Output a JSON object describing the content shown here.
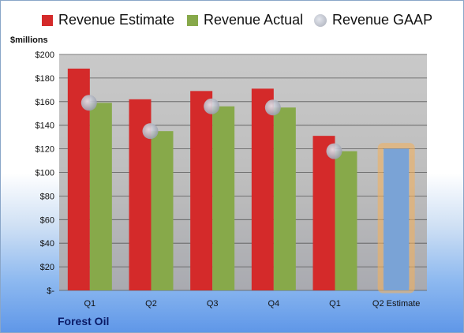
{
  "legend": {
    "estimate": "Revenue Estimate",
    "actual": "Revenue Actual",
    "gaap": "Revenue GAAP"
  },
  "unit_label": "$millions",
  "company": "Forest Oil",
  "colors": {
    "estimate": "#d42a2a",
    "actual": "#87a94a",
    "gaap": "#b9bcc6",
    "forecast": "#7aa3d6",
    "forecast_glow": "#f0b060",
    "plot_bg": "#c8c8c8"
  },
  "chart_data": {
    "type": "bar",
    "categories": [
      "Q1",
      "Q2",
      "Q3",
      "Q4",
      "Q1",
      "Q2 Estimate"
    ],
    "ytick_labels": [
      "$-",
      "$20",
      "$40",
      "$60",
      "$80",
      "$100",
      "$120",
      "$140",
      "$160",
      "$180",
      "$200"
    ],
    "ylim": [
      0,
      200
    ],
    "ylabel": "$millions",
    "grid": true,
    "legend_position": "top",
    "series": [
      {
        "name": "Revenue Estimate",
        "type": "bar",
        "values": [
          188,
          162,
          169,
          171,
          131,
          null
        ]
      },
      {
        "name": "Revenue Actual",
        "type": "bar",
        "values": [
          159,
          135,
          156,
          155,
          118,
          120
        ]
      },
      {
        "name": "Revenue GAAP",
        "type": "scatter",
        "values": [
          159,
          135,
          156,
          155,
          118,
          null
        ]
      }
    ],
    "forecast_index": 5
  }
}
